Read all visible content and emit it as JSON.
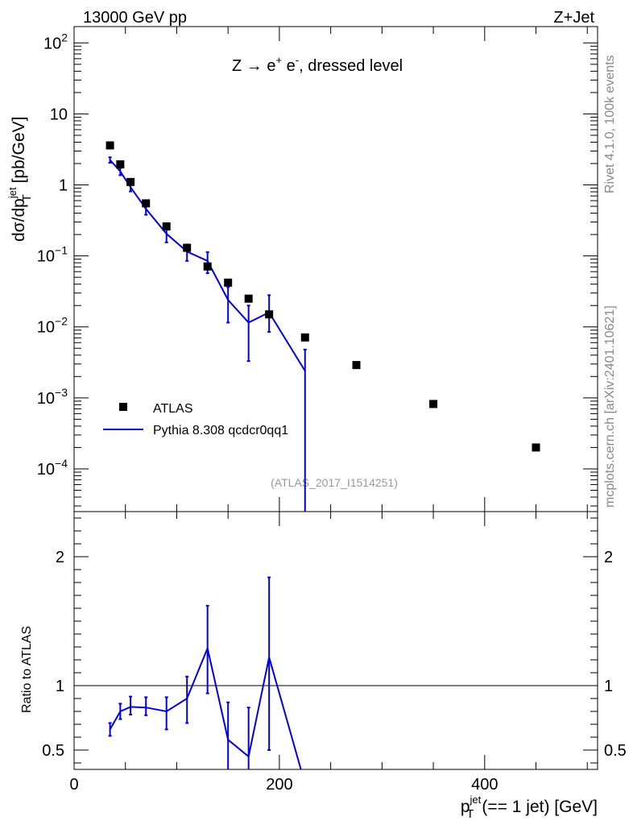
{
  "header": {
    "left": "13000 GeV pp",
    "right": "Z+Jet"
  },
  "plot": {
    "annotation_prefix": "Z → e",
    "annotation_sup1": "+",
    "annotation_mid": " e",
    "annotation_sup2": "-",
    "annotation_suffix": ", dressed level",
    "watermark": "(ATLAS_2017_I1514251)",
    "ylabel_main": "dσ/dp",
    "ylabel_sup": "jet",
    "ylabel_sub": "T",
    "ylabel_unit": "[pb/GeV]",
    "ratio_ylabel": "Ratio to ATLAS",
    "xlabel_p": "p",
    "xlabel_sup": "jet",
    "xlabel_sub": "T",
    "xlabel_rest": "(== 1 jet) [GeV]"
  },
  "side_labels": {
    "rivet": "Rivet 4.1.0,  100k events",
    "mcplots": "mcplots.cern.ch [arXiv:2401.10621]"
  },
  "legend": {
    "data": "ATLAS",
    "mc": "Pythia 8.308 qcdcr0qq1"
  },
  "colors": {
    "data": "#000000",
    "mc": "#0000e0",
    "side_text": "#888888"
  },
  "chart_data": {
    "type": "line",
    "x_range": [
      0,
      510
    ],
    "main": {
      "yscale": "log",
      "ylim": [
        2.5e-05,
        170
      ],
      "y_tick_labels": [
        "10^-4",
        "10^-3",
        "10^-2",
        "10^-1",
        "1",
        "10",
        "10^2"
      ],
      "data": {
        "name": "ATLAS",
        "x": [
          35,
          45,
          55,
          70,
          90,
          110,
          130,
          150,
          170,
          190,
          225,
          275,
          350,
          450
        ],
        "y": [
          3.6,
          1.95,
          1.1,
          0.55,
          0.26,
          0.13,
          0.071,
          0.042,
          0.025,
          0.015,
          0.0071,
          0.0029,
          0.00082,
          0.0002
        ]
      },
      "mc": {
        "name": "Pythia 8.308 qcdcr0qq1",
        "x": [
          35,
          45,
          55,
          70,
          90,
          110,
          130,
          150,
          170,
          190,
          225
        ],
        "y": [
          2.25,
          1.55,
          0.93,
          0.46,
          0.205,
          0.115,
          0.085,
          0.024,
          0.0115,
          0.016,
          0.0024
        ],
        "yerr_low": [
          0.2,
          0.18,
          0.12,
          0.08,
          0.05,
          0.03,
          0.028,
          0.0125,
          0.0082,
          0.0075,
          0.0024
        ],
        "yerr_high": [
          0.2,
          0.18,
          0.12,
          0.08,
          0.05,
          0.03,
          0.028,
          0.0125,
          0.0085,
          0.012,
          0.0024
        ]
      }
    },
    "ratio": {
      "ylabel": "Ratio to ATLAS",
      "ylim": [
        0.35,
        2.35
      ],
      "y_ticks": [
        0.5,
        1,
        2
      ],
      "reference": 1,
      "mc": {
        "x": [
          35,
          45,
          55,
          70,
          90,
          110,
          130,
          150,
          170,
          190,
          221
        ],
        "y": [
          0.66,
          0.8,
          0.835,
          0.83,
          0.8,
          0.9,
          1.29,
          0.58,
          0.45,
          1.22,
          0.35
        ],
        "yerr_low": [
          0.05,
          0.06,
          0.06,
          0.06,
          0.14,
          0.19,
          0.35,
          0.3,
          0.3,
          0.72,
          0
        ],
        "yerr_high": [
          0.05,
          0.06,
          0.08,
          0.08,
          0.11,
          0.17,
          0.33,
          0.29,
          0.38,
          0.62,
          0
        ]
      }
    },
    "x_ticks": [
      0,
      200,
      400
    ]
  }
}
